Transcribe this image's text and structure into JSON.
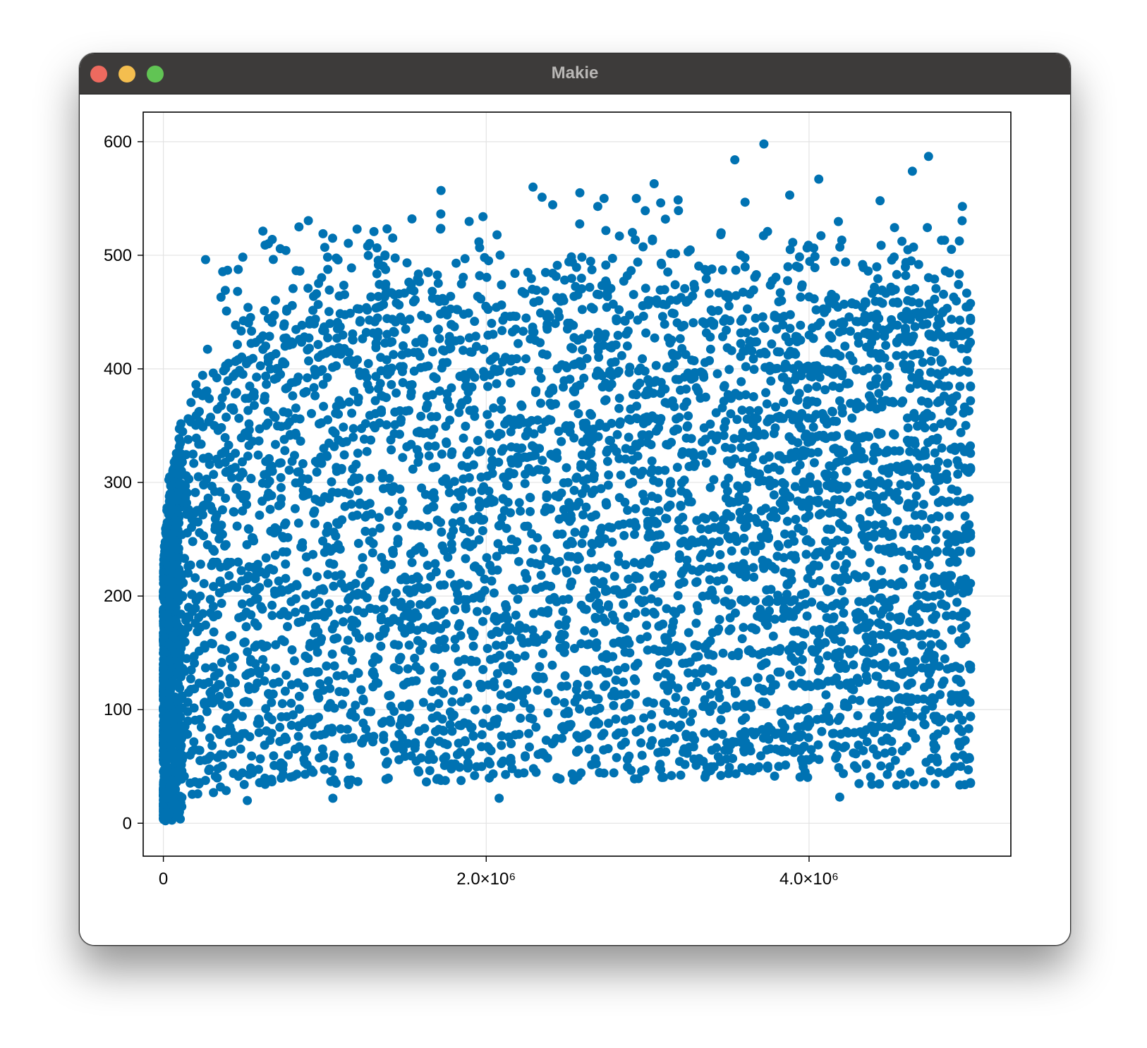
{
  "window": {
    "title": "Makie",
    "colors": {
      "titlebar": "#3d3b3a",
      "close": "#ee6a5f",
      "minimize": "#f4be4f",
      "maximize": "#61c454"
    }
  },
  "chart_data": {
    "type": "scatter",
    "title": "",
    "xlabel": "",
    "ylabel": "",
    "grid": true,
    "marker_color": "#0072b2",
    "xlim": [
      -125000,
      5250000
    ],
    "ylim": [
      -29,
      626
    ],
    "x_ticks": [
      0,
      2000000,
      4000000
    ],
    "x_tick_labels": [
      "0",
      "2.0×10⁶",
      "4.0×10⁶"
    ],
    "y_ticks": [
      0,
      100,
      200,
      300,
      400,
      500,
      600
    ],
    "y_tick_labels": [
      "0",
      "100",
      "200",
      "300",
      "400",
      "500",
      "600"
    ],
    "x_range": [
      0,
      5000000
    ],
    "y_range": [
      0,
      598
    ],
    "notable_points": [
      {
        "x": 3720000,
        "y": 598
      },
      {
        "x": 4740000,
        "y": 587
      },
      {
        "x": 3540000,
        "y": 584
      },
      {
        "x": 4640000,
        "y": 574
      },
      {
        "x": 4060000,
        "y": 567
      },
      {
        "x": 3040000,
        "y": 563
      },
      {
        "x": 2290000,
        "y": 560
      },
      {
        "x": 1720000,
        "y": 557
      },
      {
        "x": 2580000,
        "y": 555
      },
      {
        "x": 3880000,
        "y": 553
      },
      {
        "x": 2930000,
        "y": 550
      },
      {
        "x": 2730000,
        "y": 550
      },
      {
        "x": 4440000,
        "y": 548
      },
      {
        "x": 4950000,
        "y": 543
      },
      {
        "x": 1540000,
        "y": 532
      },
      {
        "x": 1980000,
        "y": 534
      },
      {
        "x": 1200000,
        "y": 523
      },
      {
        "x": 840000,
        "y": 525
      },
      {
        "x": 630000,
        "y": 509
      },
      {
        "x": 1000000,
        "y": 507
      },
      {
        "x": 4190000,
        "y": 23
      },
      {
        "x": 2080000,
        "y": 22
      },
      {
        "x": 1050000,
        "y": 22
      },
      {
        "x": 520000,
        "y": 20
      }
    ]
  }
}
